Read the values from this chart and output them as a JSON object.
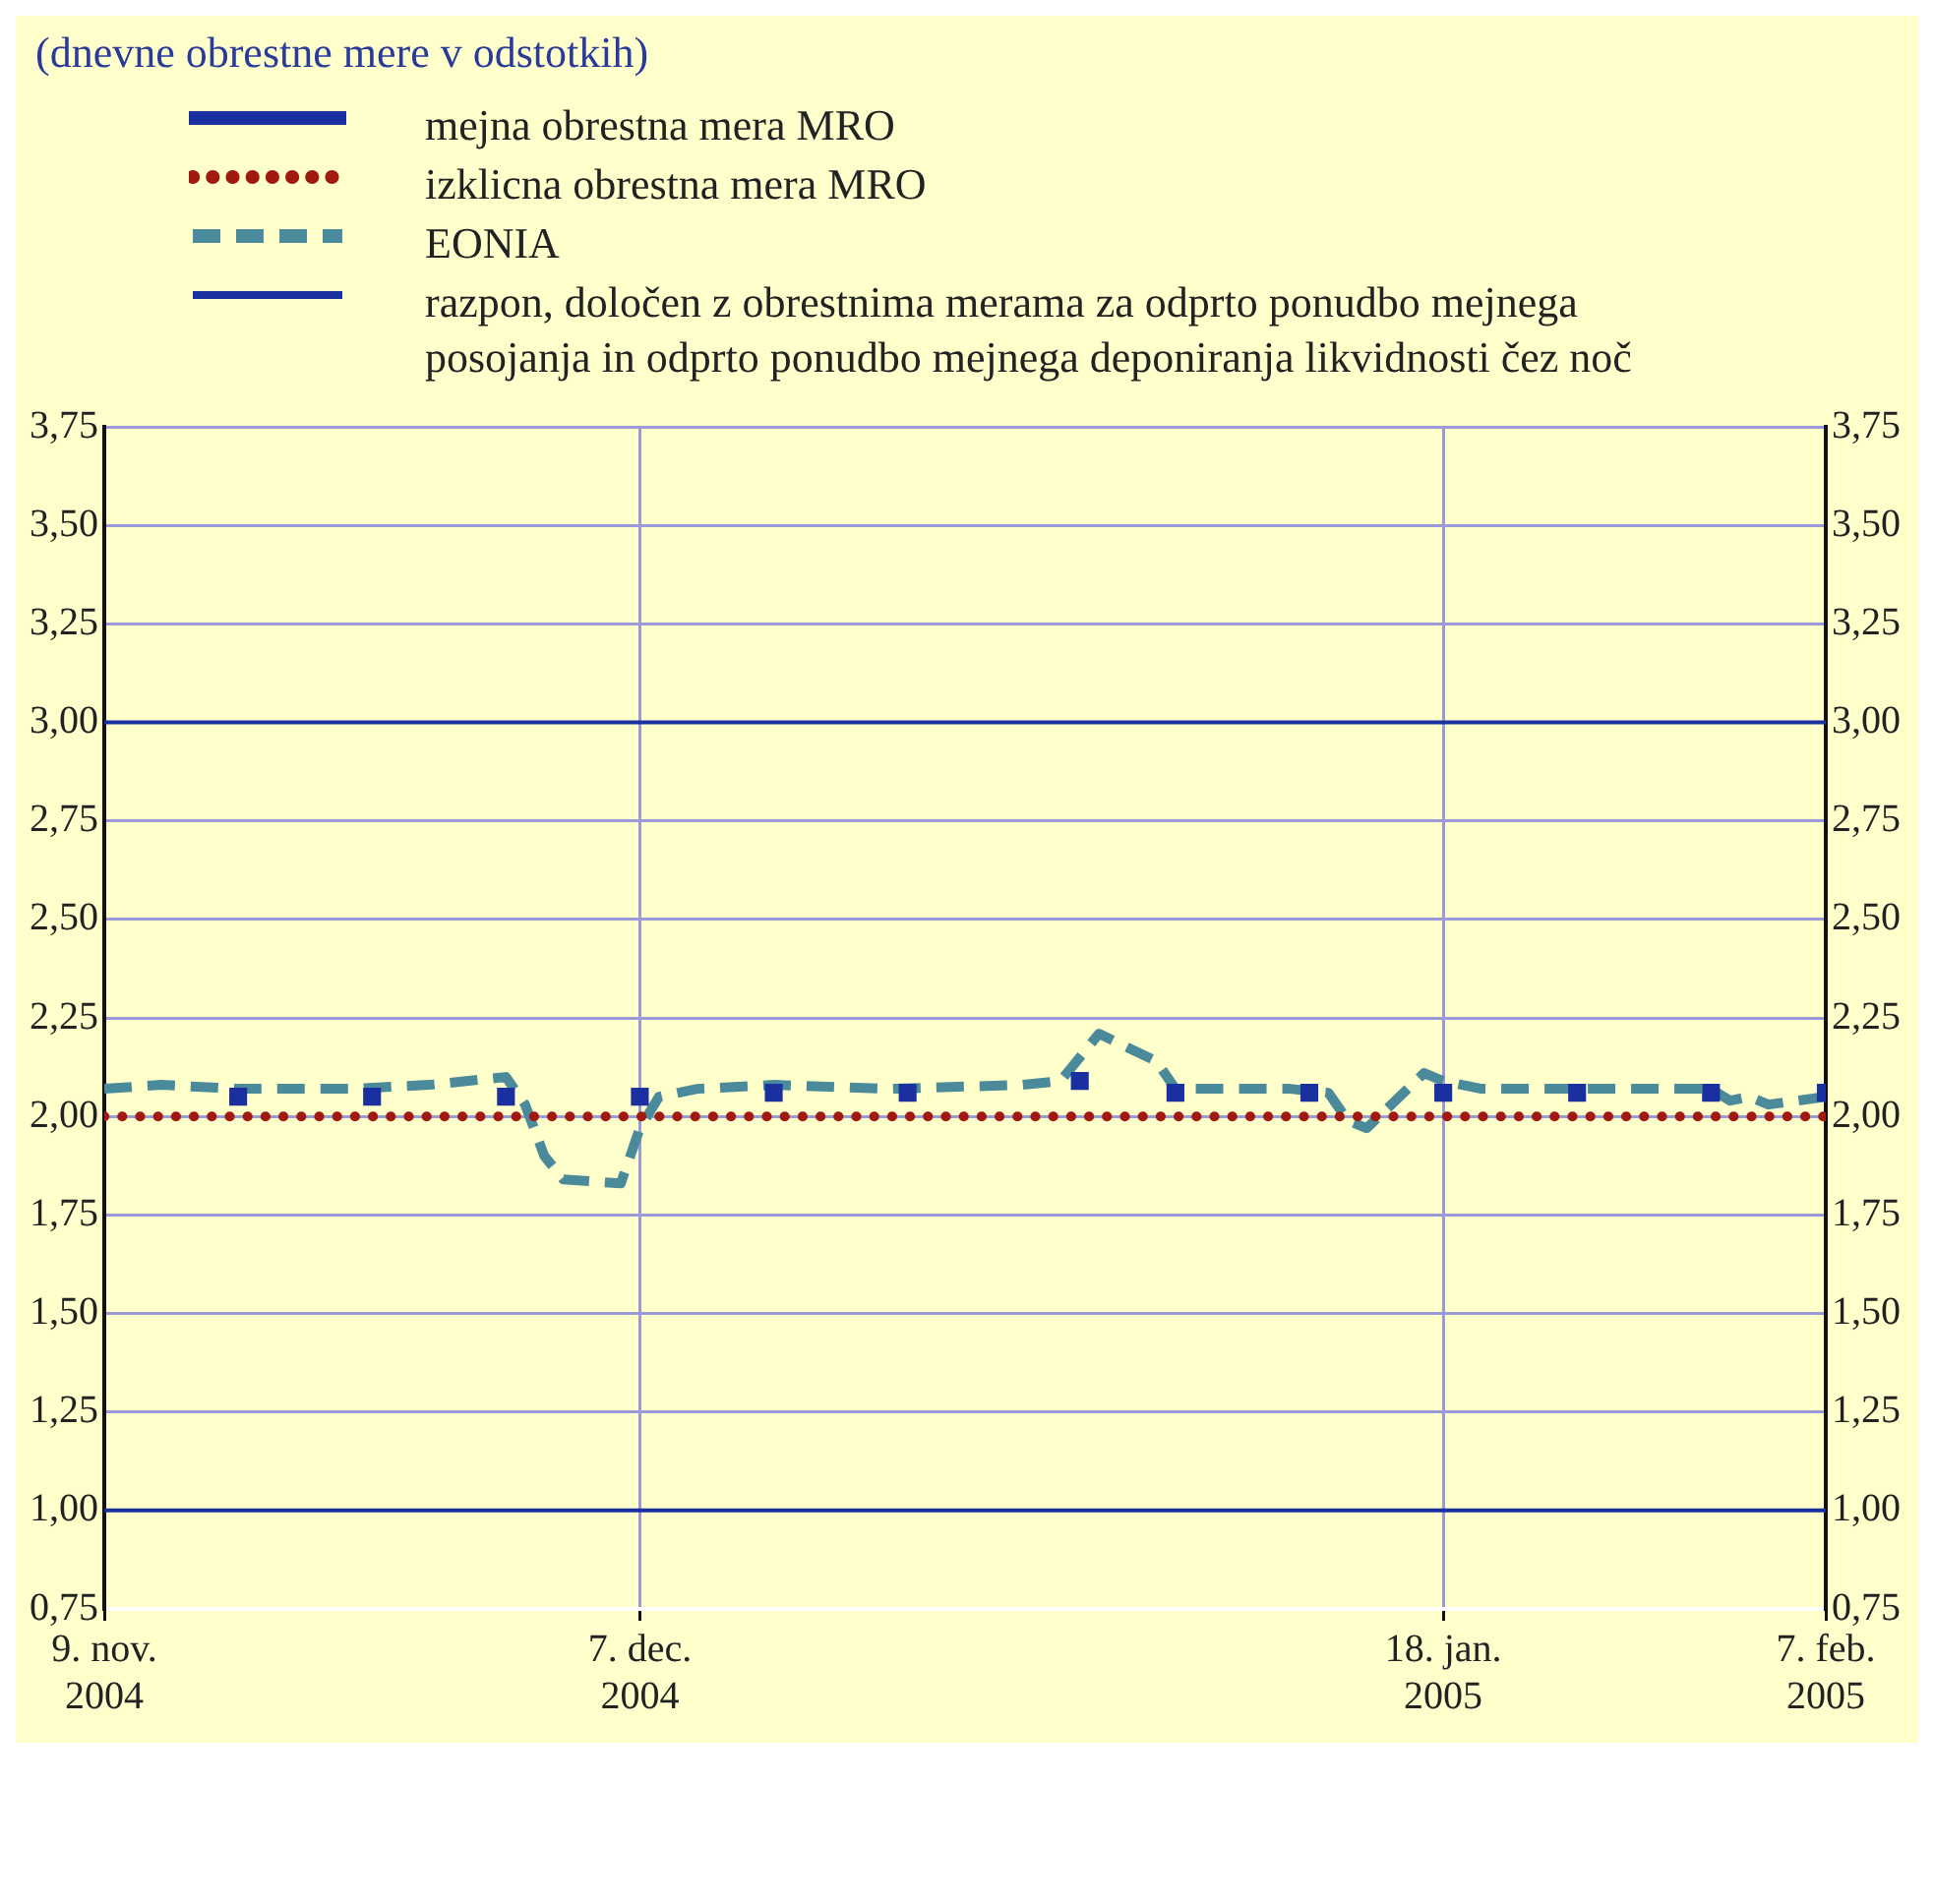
{
  "chart_data": {
    "type": "line",
    "title": "(dnevne obrestne mere v odstotkih)",
    "series": [
      {
        "name": "mejna obrestna mera MRO",
        "type": "scatter",
        "marker": "square",
        "color": "#1a2fa0",
        "x": [
          "2004-11-16",
          "2004-11-23",
          "2004-11-30",
          "2004-12-07",
          "2004-12-14",
          "2004-12-21",
          "2004-12-30",
          "2005-01-04",
          "2005-01-11",
          "2005-01-18",
          "2005-01-25",
          "2005-02-01",
          "2005-02-07"
        ],
        "values": [
          2.05,
          2.05,
          2.05,
          2.05,
          2.06,
          2.06,
          2.09,
          2.06,
          2.06,
          2.06,
          2.06,
          2.06,
          2.06
        ]
      },
      {
        "name": "izklicna obrestna mera MRO",
        "color": "#a01a10",
        "line_style": "dotted",
        "x": [
          "2004-11-09",
          "2005-02-07"
        ],
        "values": [
          2.0,
          2.0
        ]
      },
      {
        "name": "EONIA",
        "color": "#4a8a9a",
        "line_style": "dashed",
        "x": [
          "2004-11-09",
          "2004-11-12",
          "2004-11-16",
          "2004-11-22",
          "2004-11-26",
          "2004-11-30",
          "2004-12-01",
          "2004-12-02",
          "2004-12-03",
          "2004-12-06",
          "2004-12-07",
          "2004-12-08",
          "2004-12-10",
          "2004-12-14",
          "2004-12-20",
          "2004-12-27",
          "2004-12-29",
          "2004-12-30",
          "2004-12-31",
          "2005-01-03",
          "2005-01-04",
          "2005-01-10",
          "2005-01-12",
          "2005-01-13",
          "2005-01-14",
          "2005-01-17",
          "2005-01-18",
          "2005-01-20",
          "2005-01-26",
          "2005-02-01",
          "2005-02-02",
          "2005-02-03",
          "2005-02-04",
          "2005-02-07"
        ],
        "values": [
          2.07,
          2.08,
          2.07,
          2.07,
          2.08,
          2.1,
          2.03,
          1.9,
          1.84,
          1.83,
          1.97,
          2.05,
          2.07,
          2.08,
          2.07,
          2.08,
          2.09,
          2.15,
          2.21,
          2.14,
          2.07,
          2.07,
          2.06,
          1.99,
          1.97,
          2.11,
          2.09,
          2.07,
          2.07,
          2.07,
          2.04,
          2.05,
          2.03,
          2.05
        ]
      },
      {
        "name": "razpon, določen z obrestnima merama za odprto ponudbo mejnega posojanja in odprto ponudbo mejnega deponiranja likvidnosti čez noč",
        "color": "#1a2fa0",
        "line_style": "solid",
        "x": [
          "2004-11-09",
          "2005-02-07"
        ],
        "values": [
          3.0,
          3.0
        ]
      },
      {
        "color": "#1a2fa0",
        "line_style": "solid",
        "x": [
          "2004-11-09",
          "2005-02-07"
        ],
        "values": [
          1.0,
          1.0
        ]
      }
    ],
    "xlim": [
      "2004-11-09",
      "2005-02-07"
    ],
    "xticks": [
      {
        "value": "2004-11-09",
        "label": "9. nov. 2004"
      },
      {
        "value": "2004-12-07",
        "label": "7. dec. 2004"
      },
      {
        "value": "2005-01-18",
        "label": "18. jan. 2005"
      },
      {
        "value": "2005-02-07",
        "label": "7. feb. 2005"
      }
    ],
    "ylim": [
      0.75,
      3.75
    ],
    "yticks": [
      {
        "value": 0.75,
        "label": "0,75"
      },
      {
        "value": 1.0,
        "label": "1,00"
      },
      {
        "value": 1.25,
        "label": "1,25"
      },
      {
        "value": 1.5,
        "label": "1,50"
      },
      {
        "value": 1.75,
        "label": "1,75"
      },
      {
        "value": 2.0,
        "label": "2,00"
      },
      {
        "value": 2.25,
        "label": "2,25"
      },
      {
        "value": 2.5,
        "label": "2,50"
      },
      {
        "value": 2.75,
        "label": "2,75"
      },
      {
        "value": 3.0,
        "label": "3,00"
      },
      {
        "value": 3.25,
        "label": "3,25"
      },
      {
        "value": 3.5,
        "label": "3,50"
      },
      {
        "value": 3.75,
        "label": "3,75"
      }
    ],
    "y2lim": [
      0.75,
      3.75
    ],
    "y2ticks": [
      {
        "value": 0.75,
        "label": "0,75"
      },
      {
        "value": 1.0,
        "label": "1,00"
      },
      {
        "value": 1.25,
        "label": "1,25"
      },
      {
        "value": 1.5,
        "label": "1,50"
      },
      {
        "value": 1.75,
        "label": "1,75"
      },
      {
        "value": 2.0,
        "label": "2,00"
      },
      {
        "value": 2.25,
        "label": "2,25"
      },
      {
        "value": 2.5,
        "label": "2,50"
      },
      {
        "value": 2.75,
        "label": "2,75"
      },
      {
        "value": 3.0,
        "label": "3,00"
      },
      {
        "value": 3.25,
        "label": "3,25"
      },
      {
        "value": 3.5,
        "label": "3,50"
      },
      {
        "value": 3.75,
        "label": "3,75"
      }
    ],
    "grid": true,
    "legend": "top",
    "marker": "none"
  }
}
